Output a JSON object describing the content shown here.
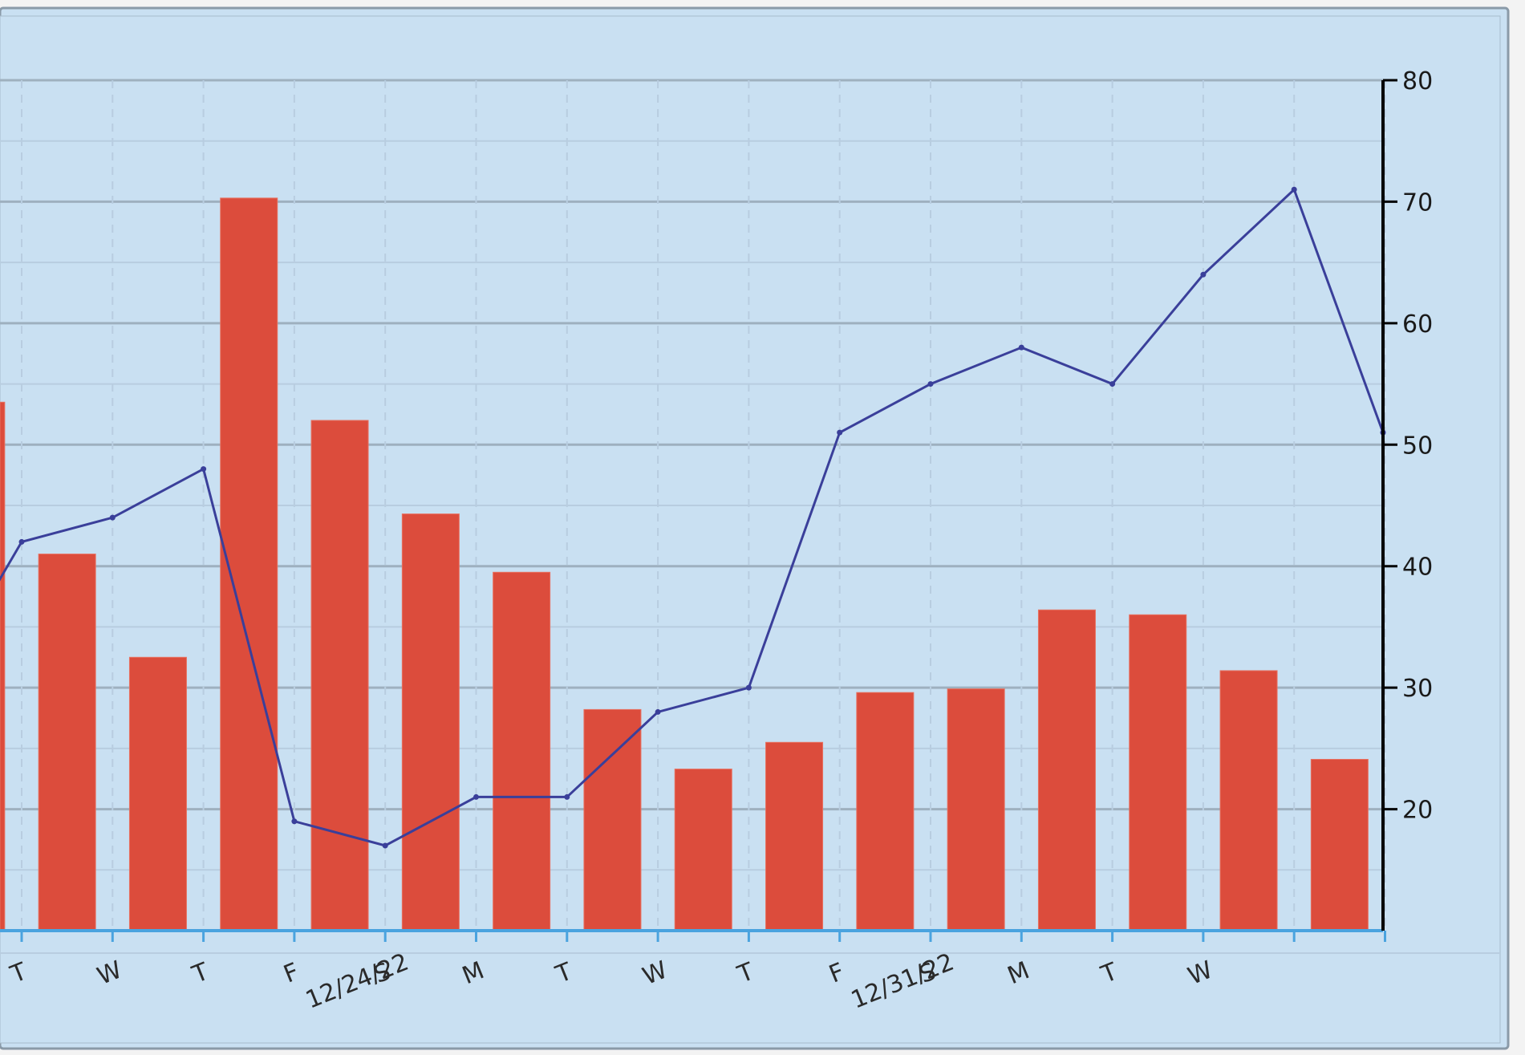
{
  "colors": {
    "plot_background": "#c9e0f2",
    "frame_border": "#8a9aa8",
    "bar_fill": "#dc4c3c",
    "line_stroke": "#3a3f9a",
    "grid_major": "#9eb0bf",
    "grid_minor": "#b8cde0",
    "axis": "#000000",
    "baseline": "#4aa3df"
  },
  "chart_data": {
    "type": "bar",
    "x_tick_labels": [
      "T",
      "W",
      "T",
      "F",
      "S",
      "M",
      "T",
      "W",
      "T",
      "F",
      "S",
      "M",
      "T",
      "W"
    ],
    "x_date_labels": [
      "12/24/22",
      "12/31/22"
    ],
    "y_ticks": [
      20,
      30,
      40,
      50,
      60,
      70,
      80
    ],
    "ylim": [
      10,
      80
    ],
    "grid": true,
    "bar_values": [
      53.5,
      41,
      32.5,
      70.3,
      52,
      44.3,
      39.5,
      28.2,
      23.3,
      25.5,
      29.6,
      29.9,
      36.4,
      36,
      31.4,
      24.1
    ],
    "line_values": [
      42,
      44,
      48,
      19,
      17,
      21,
      21,
      28,
      30,
      51,
      55,
      58,
      55,
      64,
      71,
      51
    ]
  }
}
